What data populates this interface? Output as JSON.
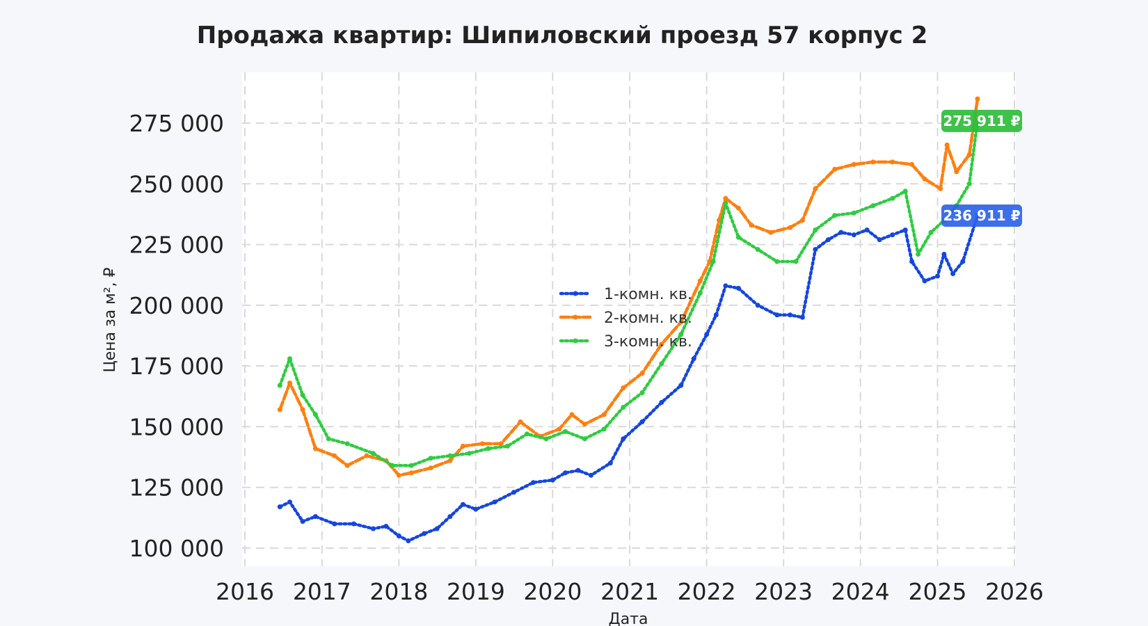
{
  "chart_data": {
    "type": "line",
    "title": "Продажа квартир: Шипиловский проезд 57 корпус 2",
    "xlabel": "Дата",
    "ylabel": "Цена за м², ₽",
    "xlim": [
      "2016-01-01",
      "2026-01-01"
    ],
    "ylim": [
      95000,
      290000
    ],
    "x_ticks": [
      "2016",
      "2017",
      "2018",
      "2019",
      "2020",
      "2021",
      "2022",
      "2023",
      "2024",
      "2025",
      "2026"
    ],
    "y_ticks": [
      100000,
      125000,
      150000,
      175000,
      200000,
      225000,
      250000,
      275000
    ],
    "y_tick_labels": [
      "100 000",
      "125 000",
      "150 000",
      "175 000",
      "200 000",
      "225 000",
      "250 000",
      "275 000"
    ],
    "grid": true,
    "legend_position": "center",
    "series": [
      {
        "name": "1-комн. кв.",
        "color": "#1446e0",
        "style": "dotted",
        "points": [
          [
            "2016-06-15",
            117000
          ],
          [
            "2016-08-01",
            119000
          ],
          [
            "2016-10-01",
            111000
          ],
          [
            "2016-12-01",
            113000
          ],
          [
            "2017-03-01",
            110000
          ],
          [
            "2017-06-01",
            110000
          ],
          [
            "2017-09-01",
            108000
          ],
          [
            "2017-11-01",
            109000
          ],
          [
            "2018-01-01",
            105000
          ],
          [
            "2018-02-15",
            103000
          ],
          [
            "2018-05-01",
            106000
          ],
          [
            "2018-07-01",
            108000
          ],
          [
            "2018-09-01",
            113000
          ],
          [
            "2018-11-01",
            118000
          ],
          [
            "2019-01-01",
            116000
          ],
          [
            "2019-04-01",
            119000
          ],
          [
            "2019-07-01",
            123000
          ],
          [
            "2019-10-01",
            127000
          ],
          [
            "2020-01-01",
            128000
          ],
          [
            "2020-03-01",
            131000
          ],
          [
            "2020-05-01",
            132000
          ],
          [
            "2020-07-01",
            130000
          ],
          [
            "2020-10-01",
            135000
          ],
          [
            "2020-12-01",
            145000
          ],
          [
            "2021-03-01",
            152000
          ],
          [
            "2021-06-01",
            160000
          ],
          [
            "2021-09-01",
            167000
          ],
          [
            "2021-11-01",
            178000
          ],
          [
            "2022-01-01",
            188000
          ],
          [
            "2022-02-15",
            196000
          ],
          [
            "2022-04-01",
            208000
          ],
          [
            "2022-06-01",
            207000
          ],
          [
            "2022-09-01",
            200000
          ],
          [
            "2022-12-01",
            196000
          ],
          [
            "2023-02-01",
            196000
          ],
          [
            "2023-04-01",
            195000
          ],
          [
            "2023-06-01",
            223000
          ],
          [
            "2023-08-01",
            227000
          ],
          [
            "2023-10-01",
            230000
          ],
          [
            "2023-12-01",
            229000
          ],
          [
            "2024-02-01",
            231000
          ],
          [
            "2024-04-01",
            227000
          ],
          [
            "2024-06-01",
            229000
          ],
          [
            "2024-08-01",
            231000
          ],
          [
            "2024-09-01",
            218000
          ],
          [
            "2024-11-01",
            210000
          ],
          [
            "2025-01-01",
            212000
          ],
          [
            "2025-02-01",
            221000
          ],
          [
            "2025-03-15",
            213000
          ],
          [
            "2025-05-01",
            218000
          ],
          [
            "2025-07-10",
            236911
          ]
        ]
      },
      {
        "name": "2-комн. кв.",
        "color": "#ff7f0e",
        "style": "dashed",
        "points": [
          [
            "2016-06-15",
            157000
          ],
          [
            "2016-08-01",
            168000
          ],
          [
            "2016-10-01",
            157000
          ],
          [
            "2016-12-01",
            141000
          ],
          [
            "2017-03-01",
            138000
          ],
          [
            "2017-05-01",
            134000
          ],
          [
            "2017-08-01",
            138000
          ],
          [
            "2017-11-01",
            136000
          ],
          [
            "2018-01-01",
            130000
          ],
          [
            "2018-03-01",
            131000
          ],
          [
            "2018-06-01",
            133000
          ],
          [
            "2018-09-01",
            136000
          ],
          [
            "2018-11-01",
            142000
          ],
          [
            "2019-02-01",
            143000
          ],
          [
            "2019-05-01",
            143000
          ],
          [
            "2019-08-01",
            152000
          ],
          [
            "2019-11-01",
            146000
          ],
          [
            "2020-02-01",
            149000
          ],
          [
            "2020-04-01",
            155000
          ],
          [
            "2020-06-01",
            151000
          ],
          [
            "2020-09-01",
            155000
          ],
          [
            "2020-12-01",
            166000
          ],
          [
            "2021-03-01",
            172000
          ],
          [
            "2021-06-01",
            184000
          ],
          [
            "2021-09-01",
            193000
          ],
          [
            "2021-12-01",
            210000
          ],
          [
            "2022-01-15",
            218000
          ],
          [
            "2022-03-01",
            235000
          ],
          [
            "2022-04-01",
            244000
          ],
          [
            "2022-06-01",
            240000
          ],
          [
            "2022-08-01",
            233000
          ],
          [
            "2022-11-01",
            230000
          ],
          [
            "2023-02-01",
            232000
          ],
          [
            "2023-04-01",
            235000
          ],
          [
            "2023-06-01",
            248000
          ],
          [
            "2023-09-01",
            256000
          ],
          [
            "2023-12-01",
            258000
          ],
          [
            "2024-03-01",
            259000
          ],
          [
            "2024-06-01",
            259000
          ],
          [
            "2024-09-01",
            258000
          ],
          [
            "2024-11-01",
            252000
          ],
          [
            "2025-01-15",
            248000
          ],
          [
            "2025-02-15",
            266000
          ],
          [
            "2025-04-01",
            255000
          ],
          [
            "2025-06-01",
            262000
          ],
          [
            "2025-07-10",
            285000
          ]
        ]
      },
      {
        "name": "3-комн. кв.",
        "color": "#2ecc40",
        "style": "dotted",
        "points": [
          [
            "2016-06-15",
            167000
          ],
          [
            "2016-08-01",
            178000
          ],
          [
            "2016-10-01",
            163000
          ],
          [
            "2016-12-01",
            155000
          ],
          [
            "2017-02-01",
            145000
          ],
          [
            "2017-05-01",
            143000
          ],
          [
            "2017-09-01",
            139000
          ],
          [
            "2017-12-01",
            134000
          ],
          [
            "2018-03-01",
            134000
          ],
          [
            "2018-06-01",
            137000
          ],
          [
            "2018-09-01",
            138000
          ],
          [
            "2018-12-01",
            139000
          ],
          [
            "2019-03-01",
            141000
          ],
          [
            "2019-06-01",
            142000
          ],
          [
            "2019-09-01",
            147000
          ],
          [
            "2019-12-01",
            145000
          ],
          [
            "2020-03-01",
            148000
          ],
          [
            "2020-06-01",
            145000
          ],
          [
            "2020-09-01",
            149000
          ],
          [
            "2020-12-01",
            158000
          ],
          [
            "2021-03-01",
            164000
          ],
          [
            "2021-06-01",
            176000
          ],
          [
            "2021-09-01",
            188000
          ],
          [
            "2021-12-01",
            205000
          ],
          [
            "2022-02-01",
            218000
          ],
          [
            "2022-04-01",
            242000
          ],
          [
            "2022-06-01",
            228000
          ],
          [
            "2022-09-01",
            223000
          ],
          [
            "2022-12-01",
            218000
          ],
          [
            "2023-03-01",
            218000
          ],
          [
            "2023-06-01",
            231000
          ],
          [
            "2023-09-01",
            237000
          ],
          [
            "2023-12-01",
            238000
          ],
          [
            "2024-03-01",
            241000
          ],
          [
            "2024-06-01",
            244000
          ],
          [
            "2024-08-01",
            247000
          ],
          [
            "2024-10-01",
            221000
          ],
          [
            "2024-12-01",
            230000
          ],
          [
            "2025-02-01",
            235000
          ],
          [
            "2025-04-01",
            241000
          ],
          [
            "2025-06-01",
            250000
          ],
          [
            "2025-07-10",
            275911
          ]
        ]
      }
    ],
    "badges": [
      {
        "series": 2,
        "label": "275 911 ₽",
        "value": 275911,
        "color": "#2ebd3a"
      },
      {
        "series": 0,
        "label": "236 911 ₽",
        "value": 236911,
        "color": "#2d63e8"
      }
    ]
  }
}
